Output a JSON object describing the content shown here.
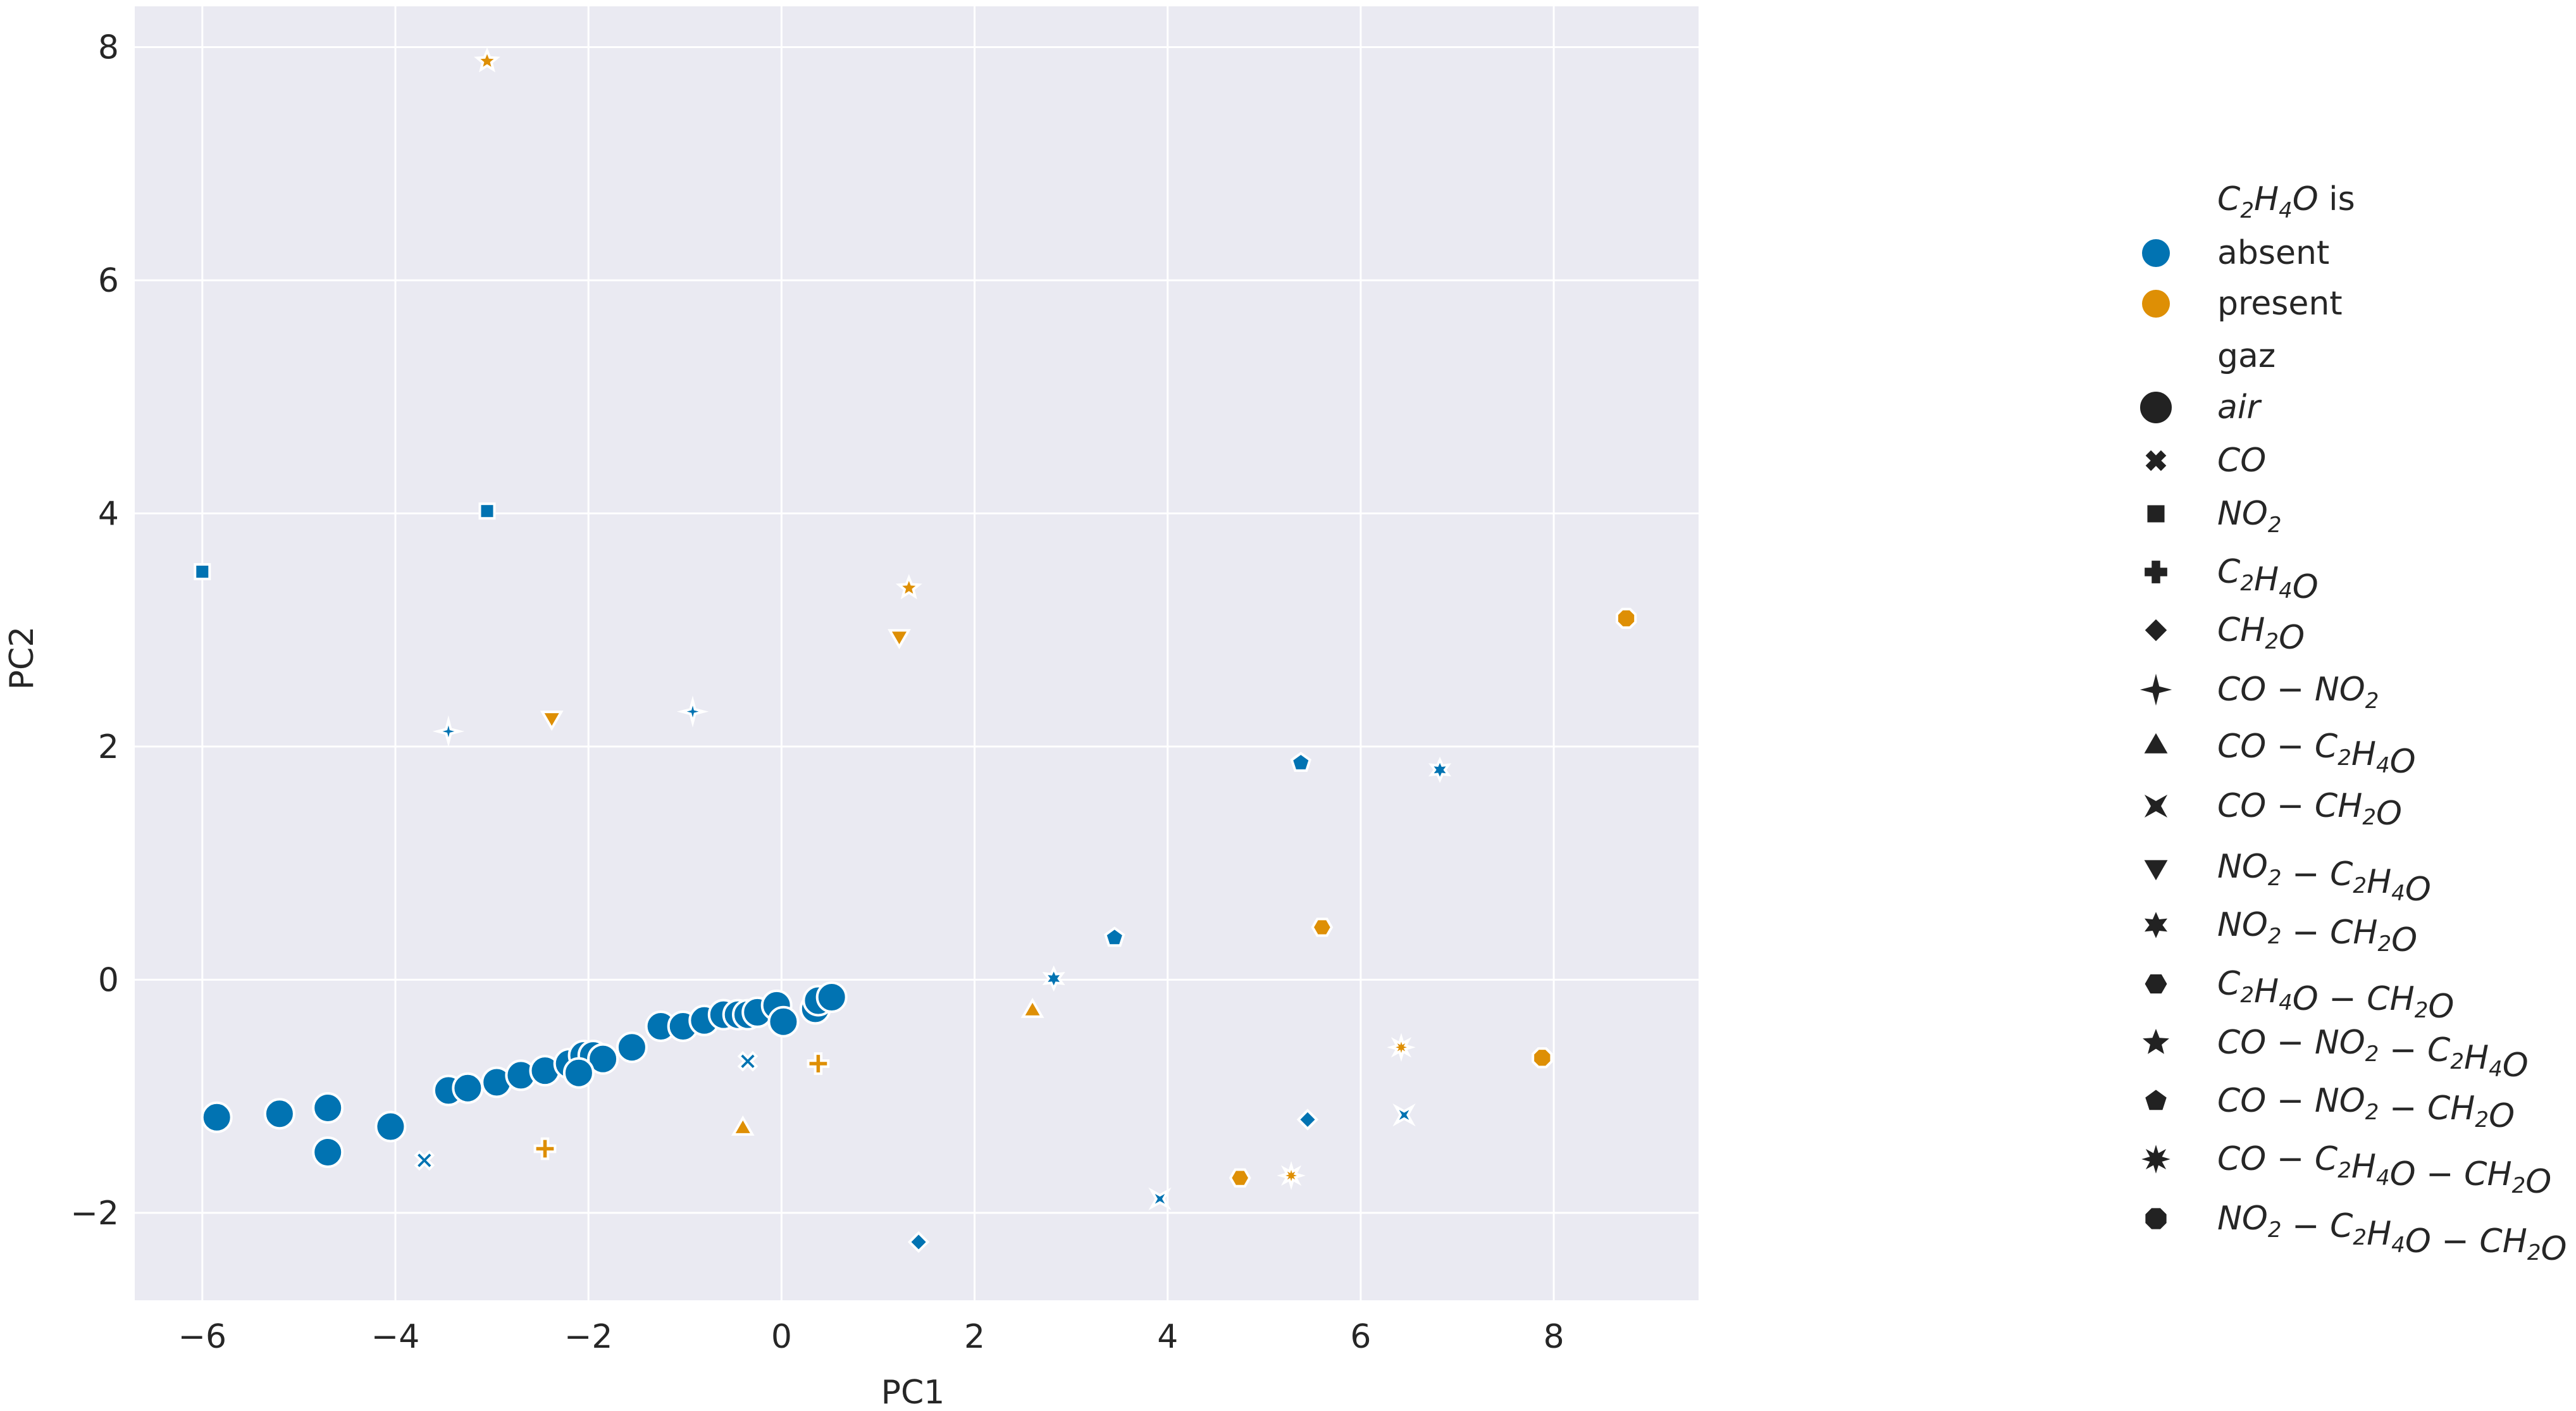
{
  "chart_data": {
    "type": "scatter",
    "xlabel": "PC1",
    "ylabel": "PC2",
    "xlim": [
      -6.7,
      9.5
    ],
    "ylim": [
      -2.75,
      8.35
    ],
    "xticks": [
      -6,
      -4,
      -2,
      0,
      2,
      4,
      6,
      8
    ],
    "yticks": [
      -2,
      0,
      2,
      4,
      6,
      8
    ],
    "xtick_labels": [
      "−6",
      "−4",
      "−2",
      "0",
      "2",
      "4",
      "6",
      "8"
    ],
    "ytick_labels": [
      "−2",
      "0",
      "2",
      "4",
      "6",
      "8"
    ],
    "grid": true,
    "background": "#eaeaf2",
    "legend_placement": "outside-right",
    "hue_title": "C2H4O is",
    "hue_levels": [
      {
        "name": "absent",
        "color": "#0173b2"
      },
      {
        "name": "present",
        "color": "#de8f05"
      }
    ],
    "style_title": "gaz",
    "style_levels": [
      {
        "name": "air",
        "marker": "circle"
      },
      {
        "name": "CO",
        "marker": "x"
      },
      {
        "name": "NO2",
        "marker": "square"
      },
      {
        "name": "C2H4O",
        "marker": "plus"
      },
      {
        "name": "CH2O",
        "marker": "diamond"
      },
      {
        "name": "CO-NO2",
        "marker": "star4"
      },
      {
        "name": "CO-C2H4O",
        "marker": "triangle-up"
      },
      {
        "name": "CO-CH2O",
        "marker": "bowtie"
      },
      {
        "name": "NO2-C2H4O",
        "marker": "triangle-down"
      },
      {
        "name": "NO2-CH2O",
        "marker": "star6"
      },
      {
        "name": "C2H4O-CH2O",
        "marker": "hexagon"
      },
      {
        "name": "CO-NO2-C2H4O",
        "marker": "star5"
      },
      {
        "name": "CO-NO2-CH2O",
        "marker": "pentagon"
      },
      {
        "name": "CO-C2H4O-CH2O",
        "marker": "star8"
      },
      {
        "name": "NO2-C2H4O-CH2O",
        "marker": "octagon"
      }
    ],
    "points": [
      {
        "x": -5.85,
        "y": -1.18,
        "hue": "absent",
        "gaz": "air"
      },
      {
        "x": -5.2,
        "y": -1.15,
        "hue": "absent",
        "gaz": "air"
      },
      {
        "x": -4.7,
        "y": -1.1,
        "hue": "absent",
        "gaz": "air"
      },
      {
        "x": -4.7,
        "y": -1.48,
        "hue": "absent",
        "gaz": "air"
      },
      {
        "x": -4.05,
        "y": -1.26,
        "hue": "absent",
        "gaz": "air"
      },
      {
        "x": -3.45,
        "y": -0.95,
        "hue": "absent",
        "gaz": "air"
      },
      {
        "x": -3.25,
        "y": -0.93,
        "hue": "absent",
        "gaz": "air"
      },
      {
        "x": -2.95,
        "y": -0.88,
        "hue": "absent",
        "gaz": "air"
      },
      {
        "x": -2.7,
        "y": -0.82,
        "hue": "absent",
        "gaz": "air"
      },
      {
        "x": -2.45,
        "y": -0.78,
        "hue": "absent",
        "gaz": "air"
      },
      {
        "x": -2.2,
        "y": -0.72,
        "hue": "absent",
        "gaz": "air"
      },
      {
        "x": -2.05,
        "y": -0.65,
        "hue": "absent",
        "gaz": "air"
      },
      {
        "x": -1.95,
        "y": -0.65,
        "hue": "absent",
        "gaz": "air"
      },
      {
        "x": -1.85,
        "y": -0.68,
        "hue": "absent",
        "gaz": "air"
      },
      {
        "x": -2.1,
        "y": -0.8,
        "hue": "absent",
        "gaz": "air"
      },
      {
        "x": -1.55,
        "y": -0.58,
        "hue": "absent",
        "gaz": "air"
      },
      {
        "x": -1.25,
        "y": -0.4,
        "hue": "absent",
        "gaz": "air"
      },
      {
        "x": -1.02,
        "y": -0.4,
        "hue": "absent",
        "gaz": "air"
      },
      {
        "x": -0.8,
        "y": -0.35,
        "hue": "absent",
        "gaz": "air"
      },
      {
        "x": -0.6,
        "y": -0.3,
        "hue": "absent",
        "gaz": "air"
      },
      {
        "x": -0.45,
        "y": -0.3,
        "hue": "absent",
        "gaz": "air"
      },
      {
        "x": -0.35,
        "y": -0.3,
        "hue": "absent",
        "gaz": "air"
      },
      {
        "x": -0.25,
        "y": -0.28,
        "hue": "absent",
        "gaz": "air"
      },
      {
        "x": -0.05,
        "y": -0.22,
        "hue": "absent",
        "gaz": "air"
      },
      {
        "x": 0.02,
        "y": -0.36,
        "hue": "absent",
        "gaz": "air"
      },
      {
        "x": 0.35,
        "y": -0.25,
        "hue": "absent",
        "gaz": "air"
      },
      {
        "x": 0.38,
        "y": -0.18,
        "hue": "absent",
        "gaz": "air"
      },
      {
        "x": 0.52,
        "y": -0.15,
        "hue": "absent",
        "gaz": "air"
      },
      {
        "x": -3.7,
        "y": -1.55,
        "hue": "absent",
        "gaz": "CO"
      },
      {
        "x": -0.35,
        "y": -0.7,
        "hue": "absent",
        "gaz": "CO"
      },
      {
        "x": -6.0,
        "y": 3.5,
        "hue": "absent",
        "gaz": "NO2"
      },
      {
        "x": -3.05,
        "y": 4.02,
        "hue": "absent",
        "gaz": "NO2"
      },
      {
        "x": -2.45,
        "y": -1.45,
        "hue": "present",
        "gaz": "C2H4O"
      },
      {
        "x": 0.38,
        "y": -0.72,
        "hue": "present",
        "gaz": "C2H4O"
      },
      {
        "x": 1.42,
        "y": -2.25,
        "hue": "absent",
        "gaz": "CH2O"
      },
      {
        "x": 5.45,
        "y": -1.2,
        "hue": "absent",
        "gaz": "CH2O"
      },
      {
        "x": -3.45,
        "y": 2.13,
        "hue": "absent",
        "gaz": "CO-NO2"
      },
      {
        "x": -0.92,
        "y": 2.3,
        "hue": "absent",
        "gaz": "CO-NO2"
      },
      {
        "x": -0.4,
        "y": -1.28,
        "hue": "present",
        "gaz": "CO-C2H4O"
      },
      {
        "x": 2.6,
        "y": -0.27,
        "hue": "present",
        "gaz": "CO-C2H4O"
      },
      {
        "x": 3.92,
        "y": -1.88,
        "hue": "absent",
        "gaz": "CO-CH2O"
      },
      {
        "x": 6.45,
        "y": -1.16,
        "hue": "absent",
        "gaz": "CO-CH2O"
      },
      {
        "x": -2.38,
        "y": 2.25,
        "hue": "present",
        "gaz": "NO2-C2H4O"
      },
      {
        "x": 1.22,
        "y": 2.95,
        "hue": "present",
        "gaz": "NO2-C2H4O"
      },
      {
        "x": 2.82,
        "y": 0.01,
        "hue": "absent",
        "gaz": "NO2-CH2O"
      },
      {
        "x": 6.82,
        "y": 1.8,
        "hue": "absent",
        "gaz": "NO2-CH2O"
      },
      {
        "x": 4.75,
        "y": -1.7,
        "hue": "present",
        "gaz": "C2H4O-CH2O"
      },
      {
        "x": 5.6,
        "y": 0.45,
        "hue": "present",
        "gaz": "C2H4O-CH2O"
      },
      {
        "x": -3.05,
        "y": 7.88,
        "hue": "present",
        "gaz": "CO-NO2-C2H4O"
      },
      {
        "x": 1.32,
        "y": 3.36,
        "hue": "present",
        "gaz": "CO-NO2-C2H4O"
      },
      {
        "x": 3.45,
        "y": 0.36,
        "hue": "absent",
        "gaz": "CO-NO2-CH2O"
      },
      {
        "x": 5.38,
        "y": 1.86,
        "hue": "absent",
        "gaz": "CO-NO2-CH2O"
      },
      {
        "x": 5.28,
        "y": -1.68,
        "hue": "present",
        "gaz": "CO-C2H4O-CH2O"
      },
      {
        "x": 6.42,
        "y": -0.58,
        "hue": "present",
        "gaz": "CO-C2H4O-CH2O"
      },
      {
        "x": 7.88,
        "y": -0.67,
        "hue": "present",
        "gaz": "NO2-C2H4O-CH2O"
      },
      {
        "x": 8.75,
        "y": 3.1,
        "hue": "present",
        "gaz": "NO2-C2H4O-CH2O"
      }
    ]
  }
}
